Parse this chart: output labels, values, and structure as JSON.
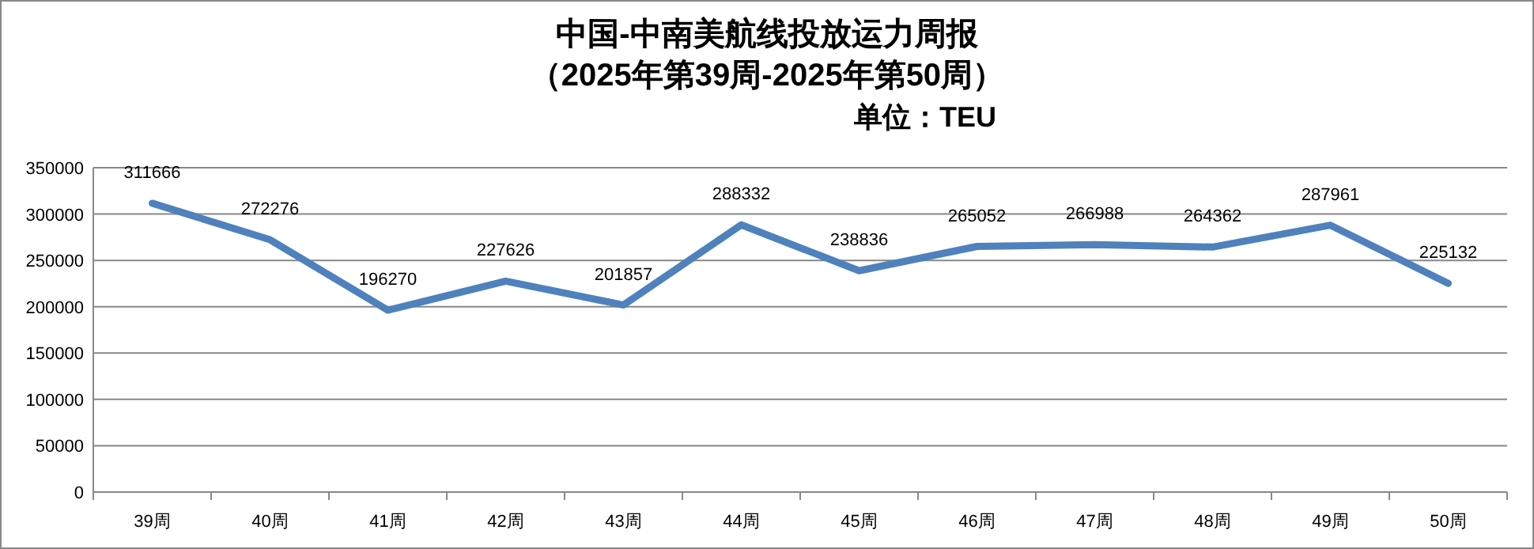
{
  "chart_data": {
    "type": "line",
    "title": "中国-中南美航线投放运力周报",
    "subtitle": "（2025年第39周-2025年第50周）",
    "annotations": [
      "单位：TEU"
    ],
    "categories": [
      "39周",
      "40周",
      "41周",
      "42周",
      "43周",
      "44周",
      "45周",
      "46周",
      "47周",
      "48周",
      "49周",
      "50周"
    ],
    "series": [
      {
        "color": "#4f81bd",
        "values": [
          311666,
          272276,
          196270,
          227626,
          201857,
          288332,
          238836,
          265052,
          266988,
          264362,
          287961,
          225132
        ]
      }
    ],
    "ylim": [
      0,
      350000
    ],
    "yticks": [
      0,
      50000,
      100000,
      150000,
      200000,
      250000,
      300000,
      350000
    ],
    "grid": "y",
    "data_labels": true
  }
}
